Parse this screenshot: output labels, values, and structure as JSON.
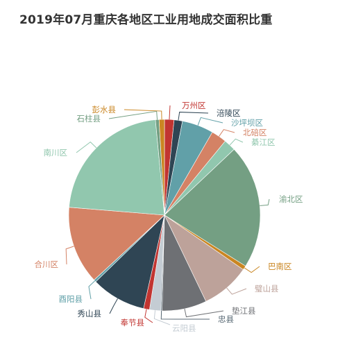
{
  "chart_data": {
    "type": "pie",
    "title": "2019年07月重庆各地区工业用地成交面积比重",
    "start_angle_deg": 0,
    "direction": "clockwise",
    "slices": [
      {
        "label": "万州区",
        "value": 1.6,
        "color": "#c23531"
      },
      {
        "label": "涪陵区",
        "value": 1.4,
        "color": "#2f4554"
      },
      {
        "label": "沙坪坝区",
        "value": 5.3,
        "color": "#61a0a8"
      },
      {
        "label": "北碚区",
        "value": 2.6,
        "color": "#d48265"
      },
      {
        "label": "綦江区",
        "value": 2.0,
        "color": "#91c7ae"
      },
      {
        "label": "渝北区",
        "value": 20.9,
        "color": "#749f83"
      },
      {
        "label": "巴南区",
        "value": 0.7,
        "color": "#ca8622"
      },
      {
        "label": "璧山县",
        "value": 8.2,
        "color": "#bda29a"
      },
      {
        "label": "垫江县",
        "value": 7.5,
        "color": "#6e7074"
      },
      {
        "label": "忠县",
        "value": 0.2,
        "color": "#546570"
      },
      {
        "label": "云阳县",
        "value": 1.9,
        "color": "#c4ccd3"
      },
      {
        "label": "奉节县",
        "value": 1.0,
        "color": "#c23531"
      },
      {
        "label": "秀山县",
        "value": 9.2,
        "color": "#2f4554"
      },
      {
        "label": "酉阳县",
        "value": 0.4,
        "color": "#61a0a8"
      },
      {
        "label": "合川区",
        "value": 13.1,
        "color": "#d48265"
      },
      {
        "label": "南川区",
        "value": 22.1,
        "color": "#91c7ae"
      },
      {
        "label": "石柱县",
        "value": 0.6,
        "color": "#749f83"
      },
      {
        "label": "彭水县",
        "value": 0.9,
        "color": "#ca8622"
      }
    ]
  }
}
